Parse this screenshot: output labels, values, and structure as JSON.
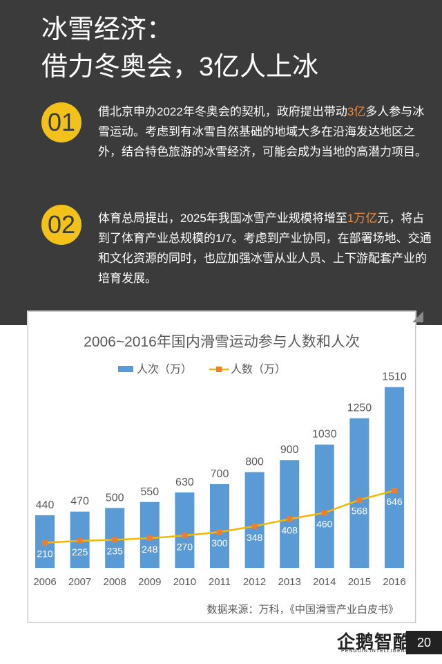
{
  "header": {
    "title_line1": "冰雪经济：",
    "title_line2": "借力冬奥会，3亿人上冰"
  },
  "points": [
    {
      "num": "01",
      "text_before": "借北京申办2022年冬奥会的契机，政府提出带动",
      "highlight": "3亿",
      "text_after": "多人参与冰雪运动。考虑到有冰雪自然基础的地域大多在沿海发达地区之外，结合特色旅游的冰雪经济，可能会成为当地的高潜力项目。"
    },
    {
      "num": "02",
      "text_before": "体育总局提出，2025年我国冰雪产业规模将增至",
      "highlight": "1万亿",
      "text_after": "元，将占到了体育产业总规模的1/7。考虑到产业协同，在部署场地、交通和文化资源的同时，也应加强冰雪从业人员、上下游配套产业的培育发展。"
    }
  ],
  "colors": {
    "header_bg": "#3b3b3b",
    "badge": "#f2c21b",
    "highlight": "#f28a3c",
    "bar": "#5b9bd5",
    "line": "#f5b800"
  },
  "chart_data": {
    "type": "bar",
    "title": "2006~2016年国内滑雪运动参与人数和人次",
    "categories": [
      "2006",
      "2007",
      "2008",
      "2009",
      "2010",
      "2011",
      "2012",
      "2013",
      "2014",
      "2015",
      "2016"
    ],
    "series": [
      {
        "name": "人次（万）",
        "type": "bar",
        "values": [
          440,
          470,
          500,
          550,
          630,
          700,
          800,
          900,
          1030,
          1250,
          1510
        ]
      },
      {
        "name": "人数（万）",
        "type": "line",
        "values": [
          210,
          225,
          235,
          248,
          270,
          300,
          348,
          408,
          460,
          568,
          646
        ]
      }
    ],
    "ylim": [
      0,
      1560
    ],
    "legend": "top",
    "source": "数据来源：万科，《中国滑雪产业白皮书》"
  },
  "footer": {
    "logo": "企鹅智酷",
    "logo_sub": "PENGUIN INTELLIGENCE",
    "page": "20"
  }
}
